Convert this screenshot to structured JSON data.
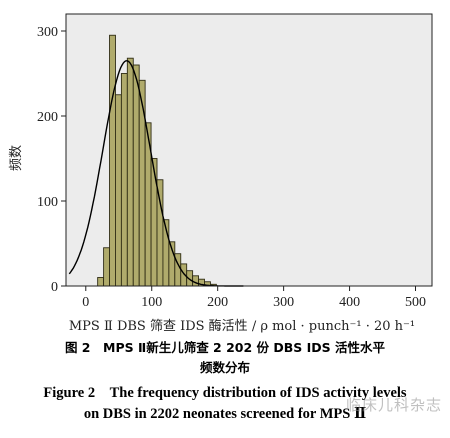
{
  "chart_data": {
    "type": "bar",
    "xlabel": "MPS Ⅱ DBS 筛查 IDS 酶活性 / ρ mol · punch⁻¹ · 20 h⁻¹",
    "ylabel": "频数",
    "xlim": [
      -30,
      525
    ],
    "ylim": [
      0,
      320
    ],
    "xticks": [
      0,
      100,
      200,
      300,
      400,
      500
    ],
    "yticks": [
      0,
      100,
      200,
      300
    ],
    "bin_width": 9,
    "bins": [
      {
        "x0": 18,
        "count": 10
      },
      {
        "x0": 27,
        "count": 45
      },
      {
        "x0": 36,
        "count": 295
      },
      {
        "x0": 45,
        "count": 225
      },
      {
        "x0": 54,
        "count": 250
      },
      {
        "x0": 63,
        "count": 268
      },
      {
        "x0": 72,
        "count": 260
      },
      {
        "x0": 81,
        "count": 242
      },
      {
        "x0": 90,
        "count": 192
      },
      {
        "x0": 99,
        "count": 150
      },
      {
        "x0": 108,
        "count": 125
      },
      {
        "x0": 117,
        "count": 78
      },
      {
        "x0": 126,
        "count": 52
      },
      {
        "x0": 135,
        "count": 38
      },
      {
        "x0": 144,
        "count": 26
      },
      {
        "x0": 153,
        "count": 18
      },
      {
        "x0": 162,
        "count": 12
      },
      {
        "x0": 171,
        "count": 8
      },
      {
        "x0": 180,
        "count": 5
      },
      {
        "x0": 189,
        "count": 2
      }
    ],
    "normal_curve": {
      "mean": 62,
      "sd": 36,
      "peak": 265
    },
    "grid": false,
    "bar_fill": "#b0ab6c",
    "bar_stroke": "#2f2c14",
    "plot_bg": "#ececec"
  },
  "captions": {
    "cn_line1": "图 2　MPS Ⅱ新生儿筛查 2 202 份 DBS IDS 活性水平",
    "cn_line2": "频数分布",
    "en_line1": "Figure 2　The frequency distribution of IDS activity levels",
    "en_line2": "on DBS in 2202 neonates screened for MPS Ⅱ"
  },
  "watermark": "临床儿科杂志"
}
